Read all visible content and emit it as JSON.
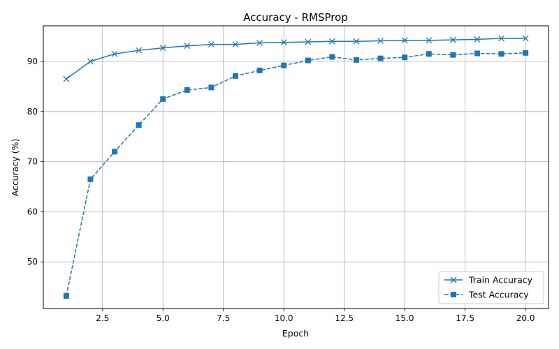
{
  "chart_data": {
    "type": "line",
    "title": "Accuracy - RMSProp",
    "xlabel": "Epoch",
    "ylabel": "Accuracy (%)",
    "x": [
      1,
      2,
      3,
      4,
      5,
      6,
      7,
      8,
      9,
      10,
      11,
      12,
      13,
      14,
      15,
      16,
      17,
      18,
      19,
      20
    ],
    "xlim": [
      0.05,
      20.95
    ],
    "ylim": [
      40.7,
      97.1
    ],
    "xticks": [
      2.5,
      5.0,
      7.5,
      10.0,
      12.5,
      15.0,
      17.5,
      20.0
    ],
    "xtick_labels": [
      "2.5",
      "5.0",
      "7.5",
      "10.0",
      "12.5",
      "15.0",
      "17.5",
      "20.0"
    ],
    "yticks": [
      50,
      60,
      70,
      80,
      90
    ],
    "ytick_labels": [
      "50",
      "60",
      "70",
      "80",
      "90"
    ],
    "grid": true,
    "legend_position": "bottom-right",
    "series": [
      {
        "name": "Train Accuracy",
        "color": "#1f77b4",
        "linestyle": "solid",
        "marker": "x",
        "values": [
          86.5,
          90.0,
          91.5,
          92.2,
          92.7,
          93.1,
          93.4,
          93.4,
          93.7,
          93.8,
          93.9,
          94.0,
          94.0,
          94.1,
          94.2,
          94.2,
          94.3,
          94.4,
          94.6,
          94.6
        ]
      },
      {
        "name": "Test Accuracy",
        "color": "#1f77b4",
        "linestyle": "dashed",
        "marker": "square",
        "values": [
          43.2,
          66.5,
          72.0,
          77.3,
          82.5,
          84.3,
          84.8,
          87.1,
          88.2,
          89.2,
          90.2,
          90.9,
          90.3,
          90.6,
          90.8,
          91.5,
          91.3,
          91.6,
          91.5,
          91.7
        ]
      }
    ]
  }
}
